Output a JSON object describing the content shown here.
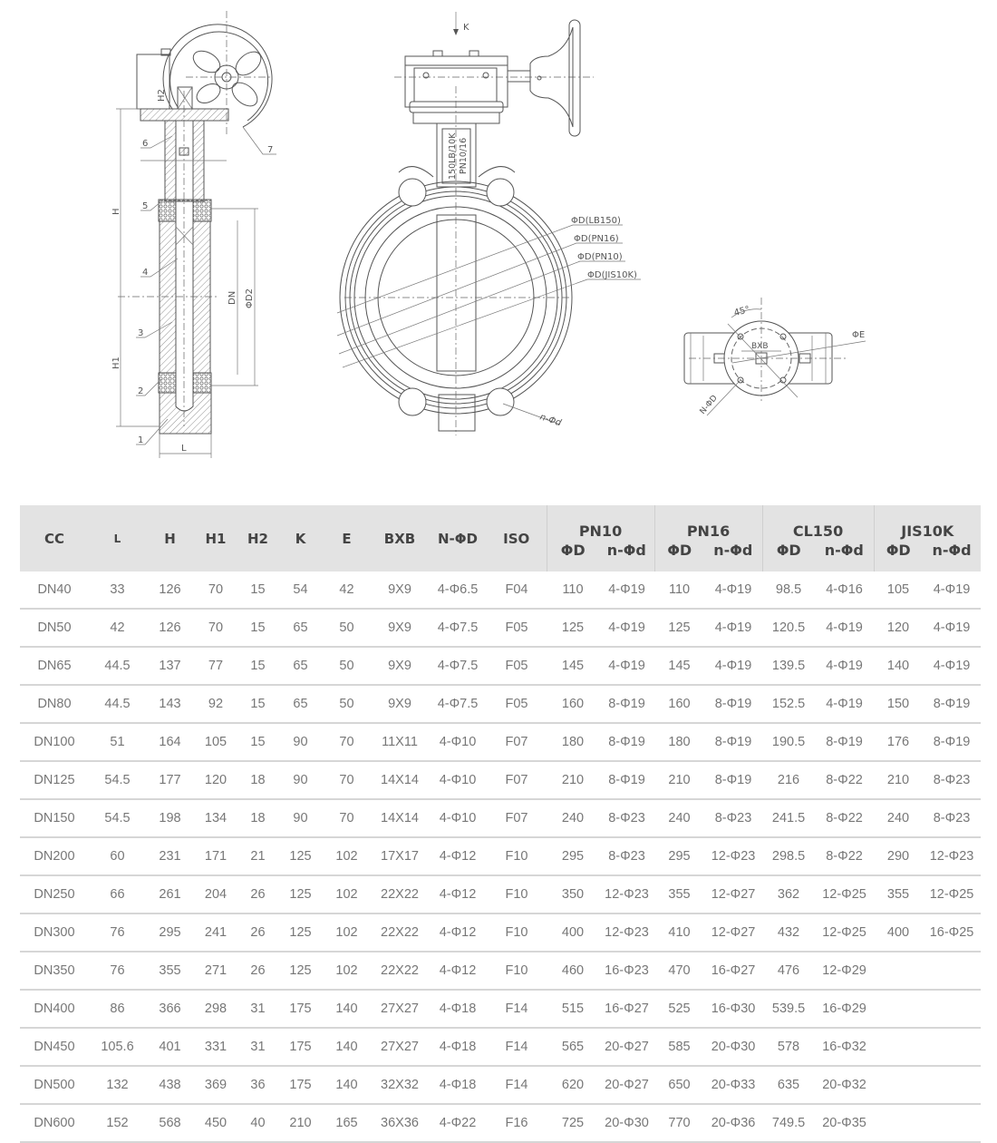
{
  "drawings": {
    "side_view": {
      "labels": {
        "h": "H",
        "h1": "H1",
        "h2": "H2",
        "dn": "DN",
        "d2": "ΦD2",
        "l": "L",
        "part1": "1",
        "part2": "2",
        "part3": "3",
        "part4": "4",
        "part5": "5",
        "part6": "6",
        "part7": "7"
      }
    },
    "front_view": {
      "labels": {
        "k": "K",
        "stamp1": "150LB/10K",
        "stamp2": "PN10/16",
        "d_lb150": "ΦD(LB150)",
        "d_pn16": "ΦD(PN16)",
        "d_pn10": "ΦD(PN10)",
        "d_jis10k": "ΦD(JIS10K)",
        "nd": "n-Φd"
      }
    },
    "top_view": {
      "labels": {
        "angle": "45°",
        "bxb": "BXB",
        "e": "ΦE",
        "nd": "N-ΦD"
      }
    }
  },
  "table": {
    "headers": [
      "CC",
      "L",
      "H",
      "H1",
      "H2",
      "K",
      "E",
      "BXB",
      "N-ΦD",
      "ISO"
    ],
    "groups": [
      "PN10",
      "PN16",
      "CL150",
      "JIS10K"
    ],
    "sub_headers": [
      "ΦD",
      "n-Φd"
    ],
    "rows": [
      [
        "DN40",
        "33",
        "126",
        "70",
        "15",
        "54",
        "42",
        "9X9",
        "4-Φ6.5",
        "F04",
        "110",
        "4-Φ19",
        "110",
        "4-Φ19",
        "98.5",
        "4-Φ16",
        "105",
        "4-Φ19"
      ],
      [
        "DN50",
        "42",
        "126",
        "70",
        "15",
        "65",
        "50",
        "9X9",
        "4-Φ7.5",
        "F05",
        "125",
        "4-Φ19",
        "125",
        "4-Φ19",
        "120.5",
        "4-Φ19",
        "120",
        "4-Φ19"
      ],
      [
        "DN65",
        "44.5",
        "137",
        "77",
        "15",
        "65",
        "50",
        "9X9",
        "4-Φ7.5",
        "F05",
        "145",
        "4-Φ19",
        "145",
        "4-Φ19",
        "139.5",
        "4-Φ19",
        "140",
        "4-Φ19"
      ],
      [
        "DN80",
        "44.5",
        "143",
        "92",
        "15",
        "65",
        "50",
        "9X9",
        "4-Φ7.5",
        "F05",
        "160",
        "8-Φ19",
        "160",
        "8-Φ19",
        "152.5",
        "4-Φ19",
        "150",
        "8-Φ19"
      ],
      [
        "DN100",
        "51",
        "164",
        "105",
        "15",
        "90",
        "70",
        "11X11",
        "4-Φ10",
        "F07",
        "180",
        "8-Φ19",
        "180",
        "8-Φ19",
        "190.5",
        "8-Φ19",
        "176",
        "8-Φ19"
      ],
      [
        "DN125",
        "54.5",
        "177",
        "120",
        "18",
        "90",
        "70",
        "14X14",
        "4-Φ10",
        "F07",
        "210",
        "8-Φ19",
        "210",
        "8-Φ19",
        "216",
        "8-Φ22",
        "210",
        "8-Φ23"
      ],
      [
        "DN150",
        "54.5",
        "198",
        "134",
        "18",
        "90",
        "70",
        "14X14",
        "4-Φ10",
        "F07",
        "240",
        "8-Φ23",
        "240",
        "8-Φ23",
        "241.5",
        "8-Φ22",
        "240",
        "8-Φ23"
      ],
      [
        "DN200",
        "60",
        "231",
        "171",
        "21",
        "125",
        "102",
        "17X17",
        "4-Φ12",
        "F10",
        "295",
        "8-Φ23",
        "295",
        "12-Φ23",
        "298.5",
        "8-Φ22",
        "290",
        "12-Φ23"
      ],
      [
        "DN250",
        "66",
        "261",
        "204",
        "26",
        "125",
        "102",
        "22X22",
        "4-Φ12",
        "F10",
        "350",
        "12-Φ23",
        "355",
        "12-Φ27",
        "362",
        "12-Φ25",
        "355",
        "12-Φ25"
      ],
      [
        "DN300",
        "76",
        "295",
        "241",
        "26",
        "125",
        "102",
        "22X22",
        "4-Φ12",
        "F10",
        "400",
        "12-Φ23",
        "410",
        "12-Φ27",
        "432",
        "12-Φ25",
        "400",
        "16-Φ25"
      ],
      [
        "DN350",
        "76",
        "355",
        "271",
        "26",
        "125",
        "102",
        "22X22",
        "4-Φ12",
        "F10",
        "460",
        "16-Φ23",
        "470",
        "16-Φ27",
        "476",
        "12-Φ29",
        "",
        ""
      ],
      [
        "DN400",
        "86",
        "366",
        "298",
        "31",
        "175",
        "140",
        "27X27",
        "4-Φ18",
        "F14",
        "515",
        "16-Φ27",
        "525",
        "16-Φ30",
        "539.5",
        "16-Φ29",
        "",
        ""
      ],
      [
        "DN450",
        "105.6",
        "401",
        "331",
        "31",
        "175",
        "140",
        "27X27",
        "4-Φ18",
        "F14",
        "565",
        "20-Φ27",
        "585",
        "20-Φ30",
        "578",
        "16-Φ32",
        "",
        ""
      ],
      [
        "DN500",
        "132",
        "438",
        "369",
        "36",
        "175",
        "140",
        "32X32",
        "4-Φ18",
        "F14",
        "620",
        "20-Φ27",
        "650",
        "20-Φ33",
        "635",
        "20-Φ32",
        "",
        ""
      ],
      [
        "DN600",
        "152",
        "568",
        "450",
        "40",
        "210",
        "165",
        "36X36",
        "4-Φ22",
        "F16",
        "725",
        "20-Φ30",
        "770",
        "20-Φ36",
        "749.5",
        "20-Φ35",
        "",
        ""
      ]
    ]
  }
}
